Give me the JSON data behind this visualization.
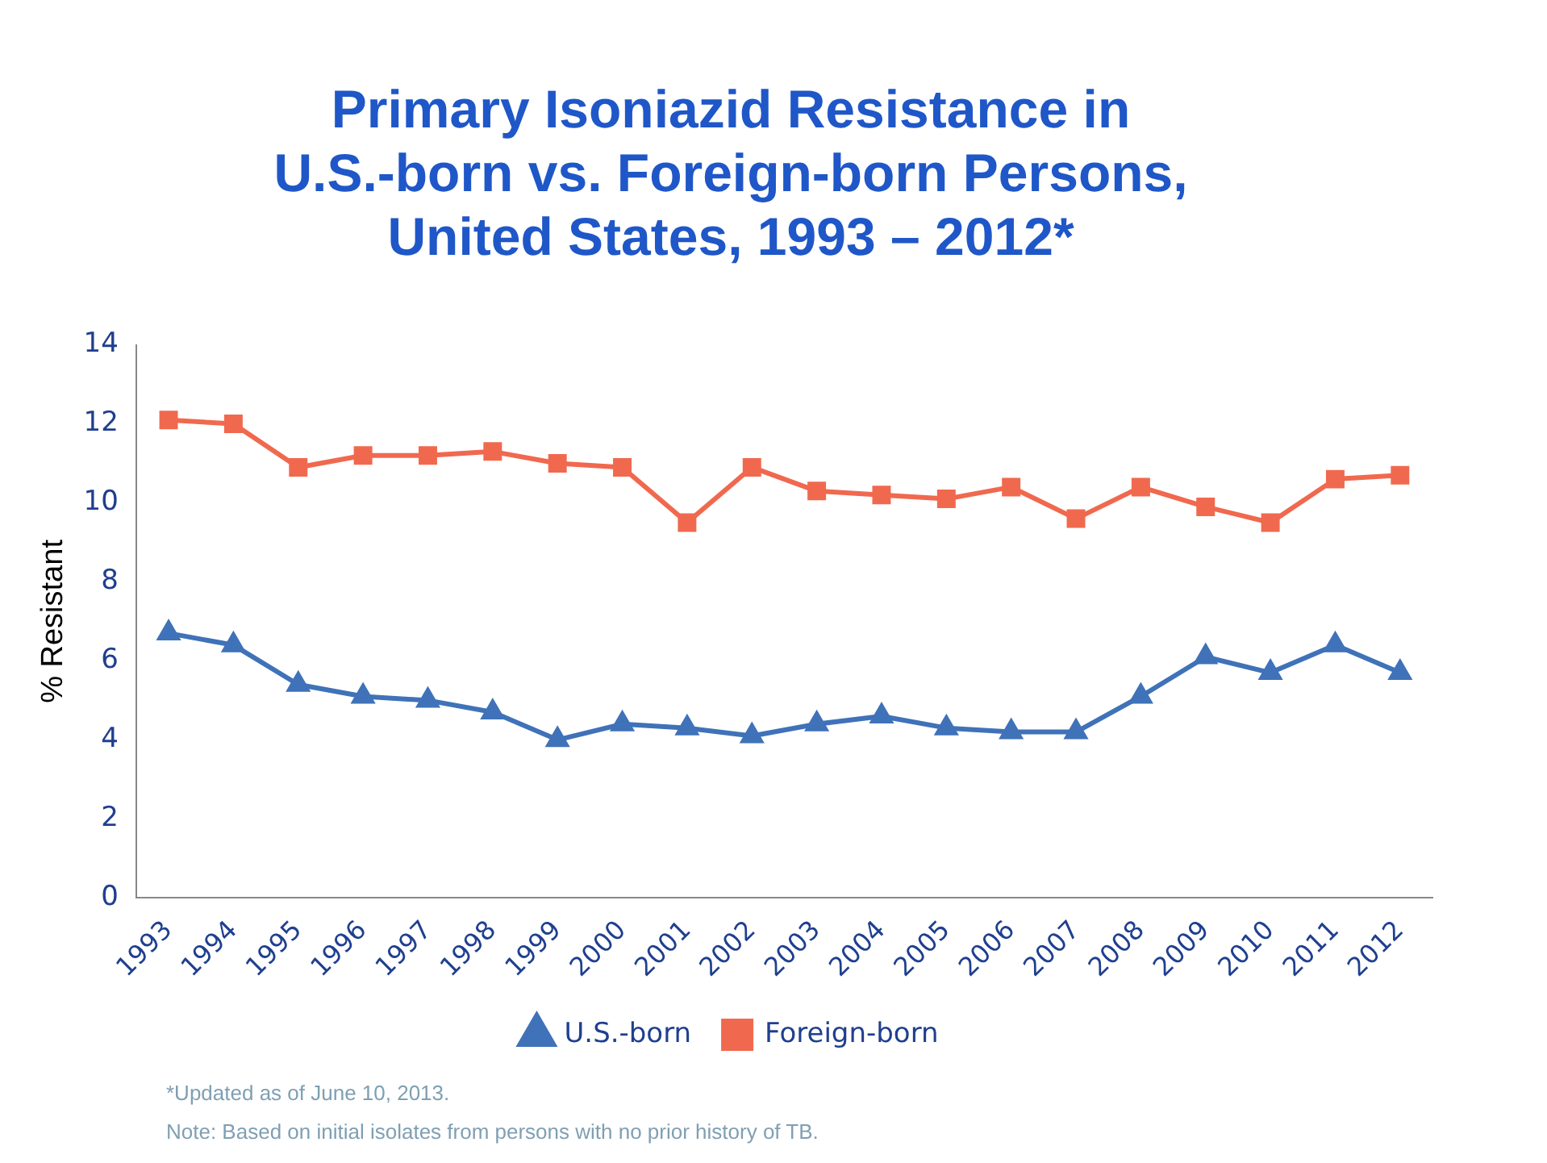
{
  "chart_data": {
    "type": "line",
    "title": "Primary Isoniazid Resistance in\nU.S.-born vs. Foreign-born Persons,\nUnited States, 1993 – 2012*",
    "categories": [
      "1993",
      "1994",
      "1995",
      "1996",
      "1997",
      "1998",
      "1999",
      "2000",
      "2001",
      "2002",
      "2003",
      "2004",
      "2005",
      "2006",
      "2007",
      "2008",
      "2009",
      "2010",
      "2011",
      "2012"
    ],
    "series": [
      {
        "name": "U.S.-born",
        "color": "#3f72b8",
        "marker": "triangle",
        "values": [
          6.7,
          6.4,
          5.4,
          5.1,
          5.0,
          4.7,
          4.0,
          4.4,
          4.3,
          4.1,
          4.4,
          4.6,
          4.3,
          4.2,
          4.2,
          5.1,
          6.1,
          5.7,
          6.4,
          5.7
        ]
      },
      {
        "name": "Foreign-born",
        "color": "#f0694f",
        "marker": "square",
        "values": [
          12.1,
          12.0,
          10.9,
          11.2,
          11.2,
          11.3,
          11.0,
          10.9,
          9.5,
          10.9,
          10.3,
          10.2,
          10.1,
          10.4,
          9.6,
          10.4,
          9.9,
          9.5,
          10.6,
          10.7
        ]
      }
    ],
    "ylabel": "% Resistant",
    "ylim": [
      0,
      14
    ],
    "yticks": [
      0,
      2,
      4,
      6,
      8,
      10,
      12,
      14
    ],
    "grid": false,
    "legend": "bottom",
    "line_style": "solid",
    "annotations": [
      "*Updated as of June 10, 2013.",
      "Note: Based on initial isolates from persons with no prior history of TB."
    ]
  }
}
